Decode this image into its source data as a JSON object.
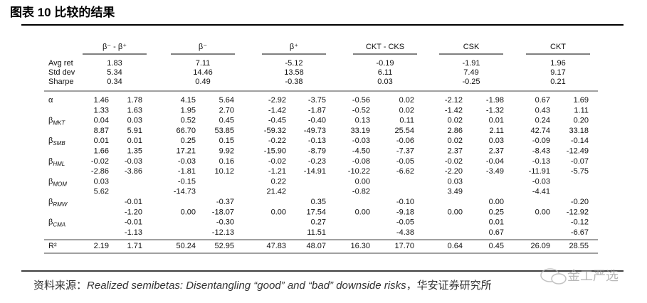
{
  "header": {
    "title": "图表 10 比较的结果"
  },
  "table": {
    "groups": [
      "β⁻ - β⁺",
      "β⁻",
      "β⁺",
      "CKT - CKS",
      "CSK",
      "CKT"
    ],
    "stats": [
      {
        "label": "Avg ret",
        "values": [
          "1.83",
          "7.11",
          "-5.12",
          "-0.19",
          "-1.91",
          "1.96"
        ]
      },
      {
        "label": "Std dev",
        "values": [
          "5.34",
          "14.46",
          "13.58",
          "6.11",
          "7.49",
          "9.17"
        ]
      },
      {
        "label": "Sharpe",
        "values": [
          "0.34",
          "0.49",
          "-0.38",
          "0.03",
          "-0.25",
          "0.21"
        ]
      }
    ],
    "rows": [
      {
        "label": {
          "symbol": "α"
        },
        "cells": [
          "1.46",
          "1.78",
          "4.15",
          "5.64",
          "-2.92",
          "-3.75",
          "-0.56",
          "0.02",
          "-2.12",
          "-1.98",
          "0.67",
          "1.69"
        ]
      },
      {
        "label": null,
        "cells": [
          "1.33",
          "1.63",
          "1.95",
          "2.70",
          "-1.42",
          "-1.87",
          "-0.52",
          "0.02",
          "-1.42",
          "-1.32",
          "0.43",
          "1.11"
        ]
      },
      {
        "label": {
          "symbol": "β",
          "sub": "MKT"
        },
        "cells": [
          "0.04",
          "0.03",
          "0.52",
          "0.45",
          "-0.45",
          "-0.40",
          "0.13",
          "0.11",
          "0.02",
          "0.01",
          "0.24",
          "0.20"
        ]
      },
      {
        "label": null,
        "cells": [
          "8.87",
          "5.91",
          "66.70",
          "53.85",
          "-59.32",
          "-49.73",
          "33.19",
          "25.54",
          "2.86",
          "2.11",
          "42.74",
          "33.18"
        ]
      },
      {
        "label": {
          "symbol": "β",
          "sub": "SMB"
        },
        "cells": [
          "0.01",
          "0.01",
          "0.25",
          "0.15",
          "-0.22",
          "-0.13",
          "-0.03",
          "-0.06",
          "0.02",
          "0.03",
          "-0.09",
          "-0.14"
        ]
      },
      {
        "label": null,
        "cells": [
          "1.66",
          "1.35",
          "17.21",
          "9.92",
          "-15.90",
          "-8.79",
          "-4.50",
          "-7.37",
          "2.37",
          "2.37",
          "-8.43",
          "-12.49"
        ]
      },
      {
        "label": {
          "symbol": "β",
          "sub": "HML"
        },
        "cells": [
          "-0.02",
          "-0.03",
          "-0.03",
          "0.16",
          "-0.02",
          "-0.23",
          "-0.08",
          "-0.05",
          "-0.02",
          "-0.04",
          "-0.13",
          "-0.07"
        ]
      },
      {
        "label": null,
        "cells": [
          "-2.86",
          "-3.86",
          "-1.81",
          "10.12",
          "-1.21",
          "-14.91",
          "-10.22",
          "-6.62",
          "-2.20",
          "-3.49",
          "-11.91",
          "-5.75"
        ]
      },
      {
        "label": {
          "symbol": "β",
          "sub": "MOM"
        },
        "cells": [
          "0.03",
          null,
          "-0.15",
          null,
          "0.22",
          null,
          "0.00",
          null,
          "0.03",
          null,
          "-0.03",
          null
        ]
      },
      {
        "label": null,
        "cells": [
          "5.62",
          null,
          "-14.73",
          null,
          "21.42",
          null,
          "-0.82",
          null,
          "3.49",
          null,
          "-4.41",
          null
        ]
      },
      {
        "label": {
          "symbol": "β",
          "sub": "RMW"
        },
        "cells": [
          null,
          "-0.01",
          null,
          "-0.37",
          null,
          "0.35",
          null,
          "-0.10",
          null,
          "0.00",
          null,
          "-0.20"
        ]
      },
      {
        "label": null,
        "cells": [
          null,
          "-1.20",
          "0.00",
          "-18.07",
          "0.00",
          "17.54",
          "0.00",
          "-9.18",
          "0.00",
          "0.25",
          "0.00",
          "-12.92"
        ]
      },
      {
        "label": {
          "symbol": "β",
          "sub": "CMA"
        },
        "cells": [
          null,
          "-0.01",
          null,
          "-0.30",
          null,
          "0.27",
          null,
          "-0.05",
          null,
          "0.01",
          null,
          "-0.12"
        ]
      },
      {
        "label": null,
        "cells": [
          null,
          "-1.13",
          null,
          "-12.13",
          null,
          "11.51",
          null,
          "-4.38",
          null,
          "0.67",
          null,
          "-6.67"
        ]
      },
      {
        "label": {
          "symbol": "R²"
        },
        "cells": [
          "2.19",
          "1.71",
          "50.24",
          "52.95",
          "47.83",
          "48.07",
          "16.30",
          "17.70",
          "0.64",
          "0.45",
          "26.09",
          "28.55"
        ]
      }
    ]
  },
  "source": {
    "prefix": "资料来源：",
    "reference": "Realized semibetas: Disentangling “good” and “bad” downside risks",
    "suffix": "，华安证券研究所"
  },
  "watermark": "金工严选"
}
